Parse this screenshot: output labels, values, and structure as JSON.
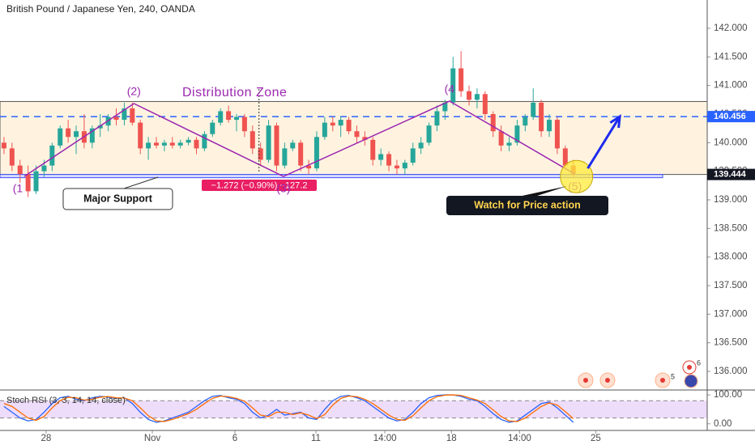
{
  "chart_data": {
    "type": "candlestick",
    "title": "British Pound / Japanese Yen, 240, OANDA",
    "open": [
      140.0,
      139.9,
      139.6,
      139.45,
      139.15,
      139.5,
      139.6,
      139.95,
      140.25,
      140.1,
      140.2,
      140.0,
      140.25,
      140.3,
      140.45,
      140.4,
      140.6,
      140.35,
      139.9,
      140.0,
      139.95,
      140.0,
      139.95,
      140.0,
      140.05,
      139.9,
      140.15,
      140.35,
      140.55,
      140.4,
      140.45,
      140.2,
      139.9,
      139.7,
      140.3,
      139.6,
      139.9,
      140.0,
      139.6,
      139.55,
      140.1,
      140.35,
      140.3,
      140.4,
      140.2,
      140.1,
      140.05,
      139.7,
      139.8,
      139.6,
      139.55,
      139.65,
      139.9,
      140.0,
      140.3,
      140.55,
      140.7,
      141.3,
      140.9,
      140.75,
      140.85,
      140.5,
      140.2,
      139.95,
      140.0,
      140.3,
      140.45,
      140.7,
      140.2,
      140.4,
      139.9,
      139.6
    ],
    "high": [
      140.1,
      140.0,
      139.7,
      139.6,
      139.6,
      139.7,
      140.0,
      140.3,
      140.4,
      140.3,
      140.5,
      140.3,
      140.5,
      140.5,
      140.6,
      140.7,
      140.7,
      140.4,
      140.1,
      140.1,
      140.05,
      140.1,
      140.05,
      140.1,
      140.1,
      140.2,
      140.4,
      140.6,
      140.65,
      140.5,
      140.5,
      140.3,
      140.0,
      140.4,
      140.35,
      140.0,
      140.05,
      140.05,
      139.7,
      140.2,
      140.45,
      140.45,
      140.45,
      140.45,
      140.3,
      140.2,
      140.1,
      139.9,
      139.85,
      139.7,
      139.7,
      140.0,
      140.1,
      140.35,
      140.65,
      140.75,
      141.5,
      141.6,
      141.0,
      140.95,
      140.9,
      140.55,
      140.3,
      140.1,
      140.4,
      140.5,
      140.95,
      140.75,
      140.5,
      140.45,
      139.95,
      139.7
    ],
    "low": [
      139.8,
      139.5,
      139.3,
      139.05,
      139.1,
      139.4,
      139.5,
      139.9,
      140.0,
      139.8,
      139.9,
      139.9,
      140.1,
      140.2,
      140.3,
      140.3,
      140.3,
      139.8,
      139.7,
      139.9,
      139.85,
      139.9,
      139.9,
      139.95,
      139.8,
      139.85,
      140.1,
      140.3,
      140.35,
      140.2,
      140.1,
      139.8,
      139.6,
      139.65,
      139.5,
      139.55,
      139.85,
      139.5,
      139.45,
      139.5,
      140.05,
      140.2,
      140.1,
      140.15,
      140.0,
      139.95,
      139.6,
      139.6,
      139.5,
      139.45,
      139.45,
      139.6,
      139.8,
      139.95,
      140.2,
      140.4,
      140.65,
      140.8,
      140.65,
      140.6,
      140.4,
      140.1,
      139.85,
      139.85,
      139.95,
      140.2,
      140.4,
      140.1,
      140.1,
      139.8,
      139.55,
      139.4
    ],
    "close": [
      139.9,
      139.6,
      139.45,
      139.15,
      139.5,
      139.6,
      139.95,
      140.25,
      140.1,
      140.2,
      140.0,
      140.25,
      140.3,
      140.45,
      140.4,
      140.6,
      140.35,
      139.9,
      140.0,
      139.95,
      140.0,
      139.95,
      140.0,
      140.05,
      139.9,
      140.15,
      140.35,
      140.55,
      140.4,
      140.45,
      140.2,
      139.9,
      139.7,
      140.3,
      139.6,
      139.9,
      140.0,
      139.6,
      139.55,
      140.1,
      140.35,
      140.3,
      140.4,
      140.2,
      140.1,
      140.05,
      139.7,
      139.8,
      139.6,
      139.55,
      139.65,
      139.9,
      140.0,
      140.3,
      140.55,
      140.7,
      141.3,
      140.9,
      140.75,
      140.85,
      140.5,
      140.2,
      139.95,
      140.0,
      140.3,
      140.45,
      140.7,
      140.2,
      140.4,
      139.9,
      139.6,
      139.45
    ],
    "up_color": "#26a69a",
    "down_color": "#ef5350",
    "xlim": [
      -0.5,
      87.7
    ],
    "xticks": [
      {
        "value": 5.25,
        "label": "28"
      },
      {
        "value": 18.5,
        "label": "Nov"
      },
      {
        "value": 28.8,
        "label": "6"
      },
      {
        "value": 38.9,
        "label": "11"
      },
      {
        "value": 47.5,
        "label": "14:00"
      },
      {
        "value": 55.8,
        "label": "18"
      },
      {
        "value": 64.3,
        "label": "14:00"
      },
      {
        "value": 73.8,
        "label": "25"
      }
    ],
    "ylim": [
      135.675,
      142.495
    ],
    "yticks": [
      {
        "value": 136,
        "label": "136.000"
      },
      {
        "value": 136.5,
        "label": "136.500"
      },
      {
        "value": 137,
        "label": "137.000"
      },
      {
        "value": 137.5,
        "label": "137.500"
      },
      {
        "value": 138,
        "label": "138.000"
      },
      {
        "value": 138.5,
        "label": "138.500"
      },
      {
        "value": 139,
        "label": "139.000"
      },
      {
        "value": 139.5,
        "label": "139.500"
      },
      {
        "value": 140,
        "label": "140.000"
      },
      {
        "value": 140.5,
        "label": "140.500"
      },
      {
        "value": 141,
        "label": "141.000"
      },
      {
        "value": 141.5,
        "label": "141.500"
      },
      {
        "value": 142,
        "label": "142.000"
      }
    ],
    "price_tags": [
      140.456,
      139.444
    ],
    "price_tag_colors": [
      "#2962ff",
      "#131722"
    ],
    "zone": [
      139.444,
      140.72
    ],
    "zone_color": "#fff3e0",
    "annotations": {
      "zone_label": "Distribution Zone",
      "support_label": "Major Support",
      "action_label": "Watch for Price action",
      "measure": "−1.272 (−0.90%) −127.2"
    },
    "waves": {
      "labels": [
        "(1",
        "(2)",
        "(3)",
        "(4",
        "(5)"
      ],
      "x": [
        2.53,
        16.2,
        34.85,
        55.56,
        71.2
      ],
      "y": [
        139.41,
        140.684,
        139.41,
        140.727,
        139.45
      ]
    },
    "wave_color": "#9c27b0",
    "arrow": {
      "x": [
        72.8,
        76.8
      ],
      "y": [
        139.55,
        140.456
      ],
      "color": "#1e2bf0"
    },
    "indicator": {
      "name": "Stoch RSI (3, 3, 14, 14, close)",
      "ylim": [
        -23,
        117
      ],
      "yticks": [
        {
          "value": 100,
          "label": "100.00"
        },
        {
          "value": 0,
          "label": "0.00"
        }
      ],
      "bands": [
        20,
        80
      ],
      "series": [
        {
          "color": "#2962ff",
          "values": [
            60,
            40,
            20,
            10,
            15,
            40,
            70,
            90,
            95,
            85,
            80,
            90,
            95,
            92,
            88,
            90,
            70,
            40,
            15,
            5,
            10,
            20,
            30,
            40,
            60,
            80,
            95,
            98,
            90,
            85,
            70,
            40,
            20,
            30,
            50,
            30,
            35,
            40,
            20,
            15,
            50,
            80,
            95,
            98,
            90,
            80,
            60,
            40,
            20,
            10,
            15,
            40,
            70,
            90,
            98,
            100,
            100,
            95,
            85,
            80,
            60,
            35,
            15,
            5,
            10,
            30,
            50,
            70,
            75,
            55,
            30,
            5
          ]
        },
        {
          "color": "#ff6d00",
          "values": [
            70,
            60,
            40,
            20,
            12,
            25,
            55,
            80,
            92,
            90,
            82,
            85,
            92,
            94,
            90,
            89,
            80,
            55,
            28,
            10,
            8,
            15,
            25,
            35,
            50,
            70,
            88,
            96,
            94,
            88,
            78,
            55,
            30,
            25,
            40,
            40,
            32,
            38,
            30,
            18,
            32,
            65,
            88,
            96,
            94,
            85,
            70,
            50,
            30,
            15,
            12,
            28,
            55,
            80,
            94,
            99,
            100,
            98,
            90,
            82,
            70,
            48,
            25,
            10,
            8,
            20,
            40,
            60,
            72,
            65,
            42,
            18
          ]
        }
      ]
    },
    "events": [
      "5",
      "6"
    ]
  }
}
